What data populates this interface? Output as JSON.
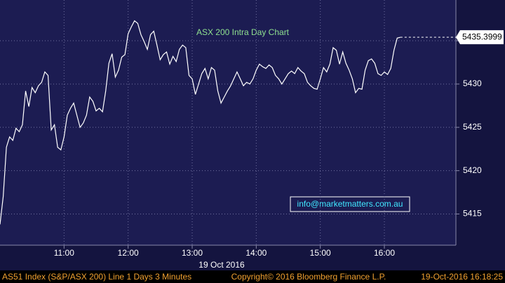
{
  "chart_data": {
    "type": "line",
    "title": "ASX 200 Intra Day Chart",
    "annotation": "info@marketmatters.com.au",
    "x_label": "19 Oct 2016",
    "color": "#ffffff",
    "grid": true,
    "x": [
      "10:00",
      "10:03",
      "10:06",
      "10:09",
      "10:12",
      "10:15",
      "10:18",
      "10:21",
      "10:24",
      "10:27",
      "10:30",
      "10:33",
      "10:36",
      "10:39",
      "10:42",
      "10:45",
      "10:48",
      "10:51",
      "10:54",
      "10:57",
      "11:00",
      "11:03",
      "11:06",
      "11:09",
      "11:12",
      "11:15",
      "11:18",
      "11:21",
      "11:24",
      "11:27",
      "11:30",
      "11:33",
      "11:36",
      "11:39",
      "11:42",
      "11:45",
      "11:48",
      "11:51",
      "11:54",
      "11:57",
      "12:00",
      "12:03",
      "12:06",
      "12:09",
      "12:12",
      "12:15",
      "12:18",
      "12:21",
      "12:24",
      "12:27",
      "12:30",
      "12:33",
      "12:36",
      "12:39",
      "12:42",
      "12:45",
      "12:48",
      "12:51",
      "12:54",
      "12:57",
      "13:00",
      "13:03",
      "13:06",
      "13:09",
      "13:12",
      "13:15",
      "13:18",
      "13:21",
      "13:24",
      "13:27",
      "13:30",
      "13:33",
      "13:36",
      "13:39",
      "13:42",
      "13:45",
      "13:48",
      "13:51",
      "13:54",
      "13:57",
      "14:00",
      "14:03",
      "14:06",
      "14:09",
      "14:12",
      "14:15",
      "14:18",
      "14:21",
      "14:24",
      "14:27",
      "14:30",
      "14:33",
      "14:36",
      "14:39",
      "14:42",
      "14:45",
      "14:48",
      "14:51",
      "14:54",
      "14:57",
      "15:00",
      "15:03",
      "15:06",
      "15:09",
      "15:12",
      "15:15",
      "15:18",
      "15:21",
      "15:24",
      "15:27",
      "15:30",
      "15:33",
      "15:36",
      "15:39",
      "15:42",
      "15:45",
      "15:48",
      "15:51",
      "15:54",
      "15:57",
      "16:00",
      "16:03",
      "16:06",
      "16:09",
      "16:12",
      "16:15"
    ],
    "values": [
      5413.8,
      5417.0,
      5422.7,
      5423.9,
      5423.5,
      5424.9,
      5424.5,
      5425.3,
      5429.2,
      5427.4,
      5429.6,
      5429.0,
      5429.8,
      5430.2,
      5431.4,
      5431.0,
      5424.7,
      5425.3,
      5422.7,
      5422.4,
      5423.9,
      5426.4,
      5427.2,
      5427.8,
      5426.4,
      5425.0,
      5425.5,
      5426.4,
      5428.5,
      5428.0,
      5426.9,
      5427.2,
      5426.8,
      5429.2,
      5432.4,
      5433.5,
      5430.8,
      5431.6,
      5433.1,
      5433.4,
      5435.8,
      5436.6,
      5437.3,
      5437.0,
      5435.7,
      5434.9,
      5434.0,
      5435.7,
      5436.1,
      5434.5,
      5432.8,
      5433.4,
      5433.7,
      5432.3,
      5433.2,
      5432.6,
      5434.0,
      5434.5,
      5434.2,
      5431.0,
      5430.6,
      5428.8,
      5430.0,
      5431.2,
      5431.8,
      5430.6,
      5431.9,
      5431.6,
      5429.2,
      5427.8,
      5428.5,
      5429.2,
      5429.8,
      5430.6,
      5431.4,
      5430.6,
      5429.8,
      5430.2,
      5430.0,
      5430.6,
      5431.6,
      5432.3,
      5432.0,
      5431.8,
      5432.2,
      5431.9,
      5431.0,
      5430.6,
      5430.0,
      5430.6,
      5431.2,
      5431.5,
      5431.2,
      5431.9,
      5431.5,
      5431.2,
      5430.2,
      5429.8,
      5429.5,
      5429.4,
      5430.6,
      5431.9,
      5431.4,
      5432.3,
      5434.2,
      5433.9,
      5432.3,
      5433.7,
      5432.4,
      5431.6,
      5430.6,
      5429.0,
      5429.5,
      5429.4,
      5431.6,
      5432.7,
      5432.9,
      5432.4,
      5431.2,
      5431.0,
      5431.4,
      5431.1,
      5431.8,
      5433.9,
      5435.3,
      5435.3999
    ],
    "xlim": [
      "10:00",
      "17:07"
    ],
    "xticks": [
      "11:00",
      "12:00",
      "13:00",
      "14:00",
      "15:00",
      "16:00"
    ],
    "ylim": [
      5411.4,
      5439.7
    ],
    "yticks": [
      5415,
      5420,
      5425,
      5430,
      5435
    ]
  },
  "footer": {
    "left": "AS51 Index (S&P/ASX 200) Line 1 Days 3 Minutes",
    "center": "Copyright© 2016 Bloomberg Finance L.P.",
    "right": "19-Oct-2016 16:18:25"
  }
}
